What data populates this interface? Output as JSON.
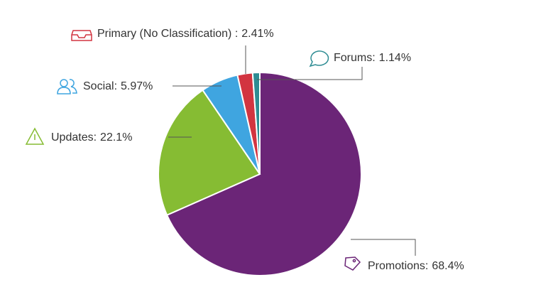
{
  "chart_data": {
    "type": "pie",
    "categories": [
      "Promotions:",
      "Updates:",
      "Social:",
      "Primary (No Classification) :",
      "Forums:"
    ],
    "values": [
      68.4,
      22.1,
      5.97,
      2.41,
      1.14
    ],
    "value_labels": [
      "68.4%",
      "22.1%",
      "5.97%",
      "2.41%",
      "1.14%"
    ],
    "colors": [
      "#6b2577",
      "#86bc33",
      "#3fa5e0",
      "#d23440",
      "#2e8c93"
    ]
  }
}
